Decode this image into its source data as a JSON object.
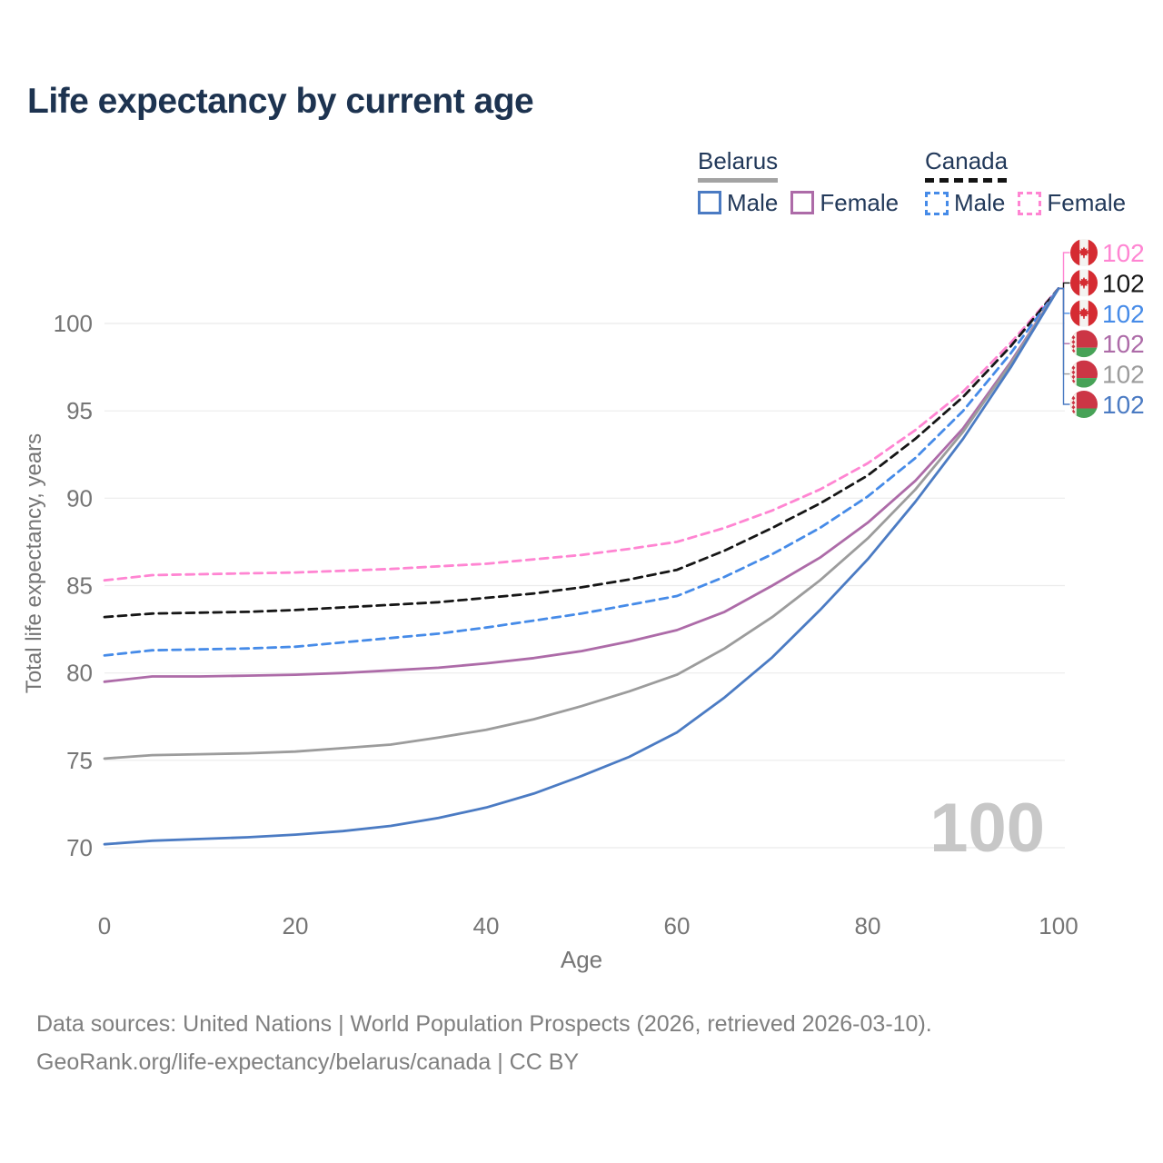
{
  "title": "Life expectancy by current age",
  "legend": {
    "groups": [
      {
        "country": "Belarus",
        "line_style": "solid",
        "items": [
          {
            "label": "Male"
          },
          {
            "label": "Female"
          }
        ]
      },
      {
        "country": "Canada",
        "line_style": "dashed",
        "items": [
          {
            "label": "Male"
          },
          {
            "label": "Female"
          }
        ]
      }
    ]
  },
  "watermark_age": "100",
  "footer": {
    "line1": "Data sources: United Nations | World Population Prospects (2026, retrieved 2026-03-10).",
    "line2": "GeoRank.org/life-expectancy/belarus/canada | CC BY"
  },
  "colors": {
    "title_text": "#1d3350",
    "legend_text": "#22395a",
    "axis_text": "#757575",
    "gridline": "#ebebeb",
    "watermark": "#c7c7c7",
    "footer_text": "#7f7f7f",
    "belarus_underline": "#a3a3a3",
    "canada_underline": "#141414"
  },
  "chart_data": {
    "type": "line",
    "title": "Life expectancy by current age",
    "xlabel": "Age",
    "ylabel": "Total life expectancy, years",
    "xlim": [
      0,
      100
    ],
    "ylim": [
      69,
      103
    ],
    "xticks": [
      0,
      20,
      40,
      60,
      80,
      100
    ],
    "yticks": [
      70,
      75,
      80,
      85,
      90,
      95,
      100
    ],
    "grid": "horizontal-only",
    "legend_position": "top-right",
    "x": [
      0,
      5,
      10,
      15,
      20,
      25,
      30,
      35,
      40,
      45,
      50,
      55,
      60,
      65,
      70,
      75,
      80,
      85,
      90,
      95,
      100
    ],
    "series": [
      {
        "name": "Canada Female",
        "country": "Canada",
        "sex": "female",
        "color": "#ff85d2",
        "line_style": "dashed",
        "flag": "canada",
        "end_label": "102",
        "values": [
          85.3,
          85.6,
          85.65,
          85.7,
          85.75,
          85.85,
          85.95,
          86.1,
          86.25,
          86.5,
          86.75,
          87.1,
          87.5,
          88.3,
          89.3,
          90.5,
          92.0,
          93.9,
          96.1,
          98.9,
          102
        ]
      },
      {
        "name": "Canada Both sexes",
        "country": "Canada",
        "sex": "both",
        "color": "#161616",
        "line_style": "dashed",
        "flag": "canada",
        "end_label": "102",
        "values": [
          83.2,
          83.4,
          83.45,
          83.5,
          83.6,
          83.75,
          83.9,
          84.05,
          84.3,
          84.55,
          84.9,
          85.35,
          85.9,
          87.0,
          88.3,
          89.7,
          91.3,
          93.4,
          95.8,
          98.7,
          102
        ]
      },
      {
        "name": "Canada Male",
        "country": "Canada",
        "sex": "male",
        "color": "#468be8",
        "line_style": "dashed",
        "flag": "canada",
        "end_label": "102",
        "values": [
          81.0,
          81.3,
          81.35,
          81.4,
          81.5,
          81.75,
          82.0,
          82.25,
          82.6,
          83.0,
          83.4,
          83.9,
          84.4,
          85.5,
          86.8,
          88.3,
          90.1,
          92.3,
          95.0,
          98.3,
          102
        ]
      },
      {
        "name": "Belarus Female",
        "country": "Belarus",
        "sex": "female",
        "color": "#ad6ba8",
        "line_style": "solid",
        "flag": "belarus",
        "end_label": "102",
        "values": [
          79.5,
          79.8,
          79.8,
          79.85,
          79.9,
          80.0,
          80.15,
          80.3,
          80.55,
          80.85,
          81.25,
          81.8,
          82.45,
          83.5,
          85.0,
          86.6,
          88.6,
          91.0,
          94.0,
          97.8,
          102
        ]
      },
      {
        "name": "Belarus Both sexes",
        "country": "Belarus",
        "sex": "both",
        "color": "#9c9c9c",
        "line_style": "solid",
        "flag": "belarus",
        "end_label": "102",
        "values": [
          75.1,
          75.3,
          75.35,
          75.4,
          75.5,
          75.7,
          75.9,
          76.3,
          76.75,
          77.35,
          78.1,
          78.95,
          79.9,
          81.4,
          83.2,
          85.3,
          87.7,
          90.5,
          93.8,
          97.7,
          102
        ]
      },
      {
        "name": "Belarus Male",
        "country": "Belarus",
        "sex": "male",
        "color": "#4b7bc3",
        "line_style": "solid",
        "flag": "belarus",
        "end_label": "102",
        "values": [
          70.2,
          70.4,
          70.5,
          70.6,
          70.75,
          70.95,
          71.25,
          71.7,
          72.3,
          73.1,
          74.1,
          75.2,
          76.6,
          78.6,
          80.9,
          83.6,
          86.5,
          89.8,
          93.4,
          97.5,
          102
        ]
      }
    ]
  }
}
